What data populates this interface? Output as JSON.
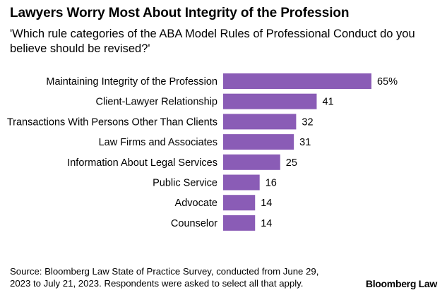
{
  "chart_data": {
    "type": "bar",
    "orientation": "horizontal",
    "title": "Lawyers Worry Most About Integrity of the Profession",
    "subtitle": "'Which rule categories of the ABA Model Rules of Professional Conduct do you believe should be revised?'",
    "categories": [
      "Maintaining Integrity of the Profession",
      "Client-Lawyer Relationship",
      "Transactions With Persons Other Than Clients",
      "Law Firms and Associates",
      "Information About Legal Services",
      "Public Service",
      "Advocate",
      "Counselor"
    ],
    "values": [
      65,
      41,
      32,
      31,
      25,
      16,
      14,
      14
    ],
    "value_labels": [
      "65%",
      "41",
      "32",
      "31",
      "25",
      "16",
      "14",
      "14"
    ],
    "xlim": [
      0,
      65
    ],
    "bar_color": "#8a5cb6",
    "grid": false,
    "source": "Source: Bloomberg Law State of Practice Survey, conducted from June 29, 2023 to July 21, 2023. Respondents were asked to select all that apply."
  },
  "brand": "Bloomberg Law"
}
